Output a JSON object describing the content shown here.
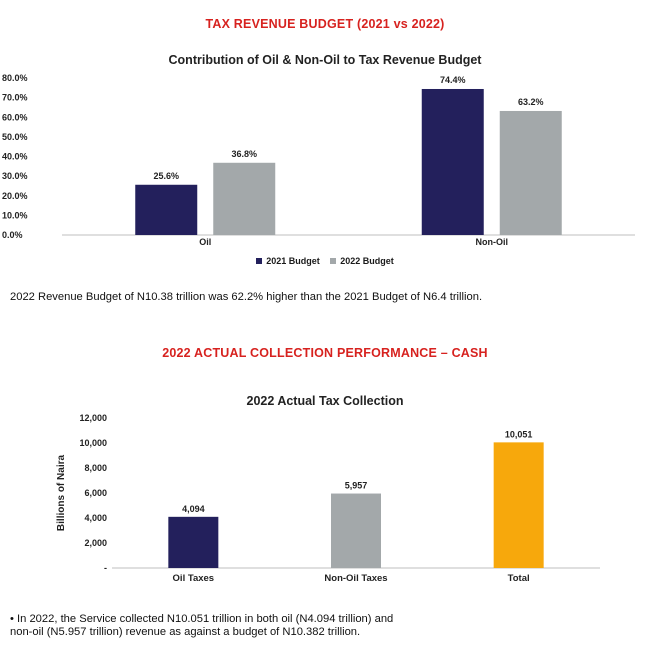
{
  "heading1": "TAX REVENUE BUDGET (2021 vs 2022)",
  "heading2": "2022 ACTUAL COLLECTION PERFORMANCE – CASH",
  "heading_color": "#d7221f",
  "paragraph1": "2022 Revenue Budget of N10.38 trillion was 62.2% higher than the 2021 Budget of N6.4 trillion.",
  "paragraph2_line1": "• In 2022, the Service collected N10.051 trillion in both oil (N4.094 trillion) and",
  "paragraph2_line2": "non-oil (N5.957 trillion) revenue as against a budget of N10.382 trillion.",
  "chart_data": [
    {
      "type": "bar",
      "title": "Contribution of Oil & Non-Oil to Tax Revenue Budget",
      "categories": [
        "Oil",
        "Non-Oil"
      ],
      "series": [
        {
          "name": "2021 Budget",
          "values": [
            25.6,
            74.4
          ],
          "labels": [
            "25.6%",
            "74.4%"
          ],
          "color": "#23205c"
        },
        {
          "name": "2022 Budget",
          "values": [
            36.8,
            63.2
          ],
          "labels": [
            "36.8%",
            "63.2%"
          ],
          "color": "#a3a8aa"
        }
      ],
      "ylim": [
        0,
        80
      ],
      "yticks": [
        "0.0%",
        "10.0%",
        "20.0%",
        "30.0%",
        "40.0%",
        "50.0%",
        "60.0%",
        "70.0%",
        "80.0%"
      ],
      "grid": false,
      "legend": "bottom"
    },
    {
      "type": "bar",
      "title": "2022 Actual Tax Collection",
      "ylabel": "Billions of Naira",
      "categories": [
        "Oil Taxes",
        "Non-Oil Taxes",
        "Total"
      ],
      "values": [
        4094,
        5957,
        10051
      ],
      "labels": [
        "4,094",
        "5,957",
        "10,051"
      ],
      "colors": [
        "#23205c",
        "#a3a8aa",
        "#f7a80c"
      ],
      "ylim": [
        0,
        12000
      ],
      "yticks": [
        "-",
        "2,000",
        "4,000",
        "6,000",
        "8,000",
        "10,000",
        "12,000"
      ],
      "grid": false
    }
  ]
}
